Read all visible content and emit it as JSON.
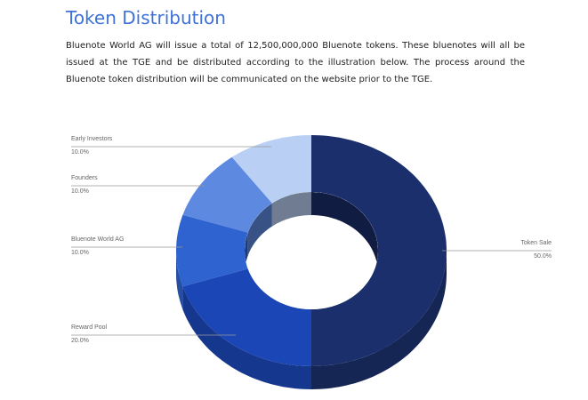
{
  "title": "Token Distribution",
  "paragraph": "Bluenote World AG will issue a total of 12,500,000,000 Bluenote tokens. These bluenotes will all be issued at the TGE and be distributed according to the illustration below. The process around the Bluenote token distribution will be communicated on the website prior to the TGE.",
  "chart_data": {
    "type": "pie",
    "categories": [
      "Token Sale",
      "Reward Pool",
      "Bluenote World AG",
      "Founders",
      "Early Investors"
    ],
    "values": [
      50,
      20,
      10,
      10,
      10
    ],
    "value_labels": [
      "50.0%",
      "20.0%",
      "10.0%",
      "10.0%",
      "10.0%"
    ],
    "colors": [
      "#1b2f6c",
      "#1b46b6",
      "#2f63cf",
      "#5d89e0",
      "#b9cff3"
    ]
  }
}
